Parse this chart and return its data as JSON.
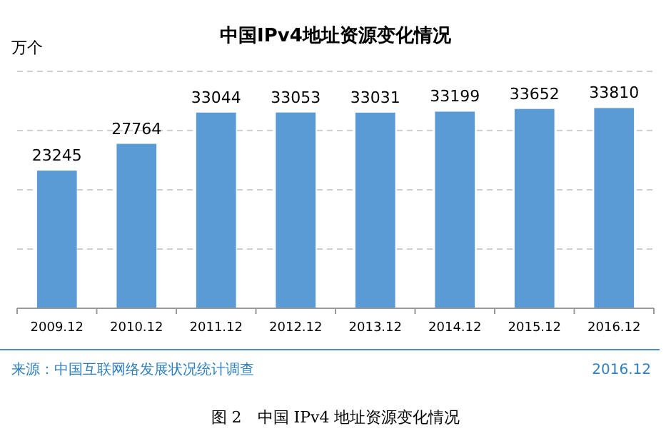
{
  "chart_data": {
    "type": "bar",
    "title": "中国IPv4地址资源变化情况",
    "ylabel": "万个",
    "categories": [
      "2009.12",
      "2010.12",
      "2011.12",
      "2012.12",
      "2013.12",
      "2014.12",
      "2015.12",
      "2016.12"
    ],
    "values": [
      23245,
      27764,
      33044,
      33053,
      33031,
      33199,
      33652,
      33810
    ],
    "color": "#5b9bd5",
    "ylim": [
      0,
      40000
    ],
    "yticks": [
      {
        "value": 0,
        "label": null
      },
      {
        "value": 10000,
        "label": null
      },
      {
        "value": 20000,
        "label": null
      },
      {
        "value": 30000,
        "label": null
      },
      {
        "value": 40000,
        "label": null
      }
    ],
    "grid": "y",
    "data_labels": true,
    "annotations": [
      "来源：中国互联网络发展状况统计调查",
      "2016.12",
      "图 2　中国 IPv4 地址资源变化情况"
    ]
  }
}
